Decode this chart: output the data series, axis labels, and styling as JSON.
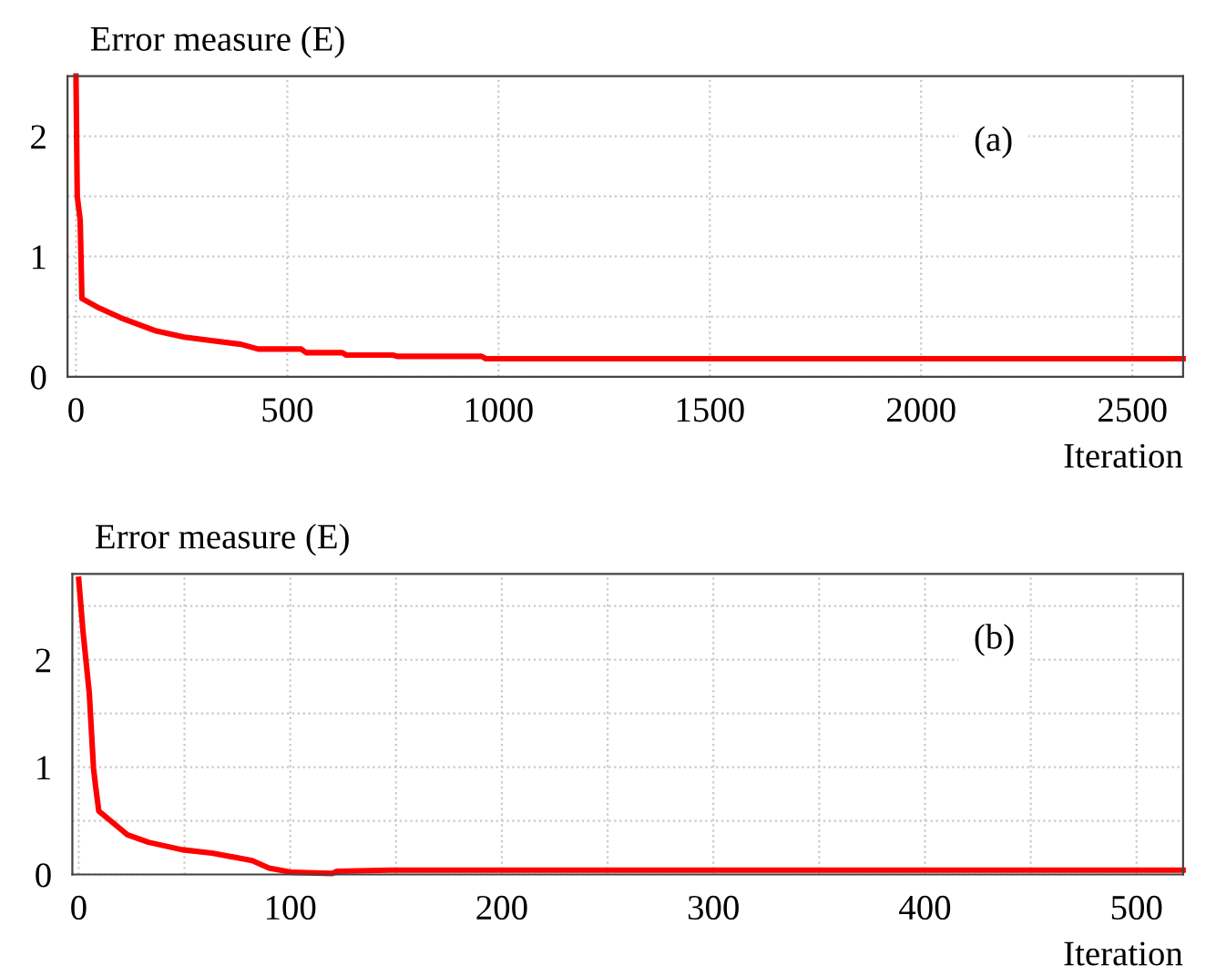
{
  "chart_data": [
    {
      "type": "line",
      "ylabel": "Error measure (E)",
      "xlabel": "Iteration",
      "annotations": [
        "(a)"
      ],
      "xlim": [
        -20,
        2620
      ],
      "xticks": [
        0,
        500,
        1000,
        1500,
        2000,
        2500
      ],
      "ylim": [
        0,
        2.5
      ],
      "yticks": [
        0,
        {
          "value": 0.5,
          "label": null
        },
        1,
        {
          "value": 1.5,
          "label": null
        },
        2
      ],
      "grid": true,
      "legend": false,
      "marker": "none",
      "line_style": "solid",
      "series": [
        {
          "color": "#ff0000",
          "x": [
            0,
            3,
            10,
            14,
            50,
            106,
            190,
            256,
            390,
            431,
            533,
            545,
            630,
            640,
            750,
            760,
            960,
            970,
            2620
          ],
          "values": [
            2.5,
            1.5,
            1.3,
            0.65,
            0.58,
            0.49,
            0.38,
            0.33,
            0.27,
            0.23,
            0.23,
            0.2,
            0.2,
            0.18,
            0.18,
            0.17,
            0.17,
            0.15,
            0.15
          ]
        }
      ]
    },
    {
      "type": "line",
      "ylabel": "Error measure (E)",
      "xlabel": "Iteration",
      "annotations": [
        "(b)"
      ],
      "xlim": [
        -3,
        522
      ],
      "xticks": [
        0,
        {
          "value": 50,
          "label": null
        },
        100,
        {
          "value": 150,
          "label": null
        },
        200,
        {
          "value": 250,
          "label": null
        },
        300,
        {
          "value": 350,
          "label": null
        },
        400,
        {
          "value": 450,
          "label": null
        },
        500
      ],
      "ylim": [
        0,
        2.8
      ],
      "yticks": [
        0,
        {
          "value": 0.5,
          "label": null
        },
        1,
        {
          "value": 1.5,
          "label": null
        },
        2,
        {
          "value": 2.5,
          "label": null
        }
      ],
      "grid": true,
      "legend": false,
      "marker": "none",
      "line_style": "solid",
      "series": [
        {
          "color": "#ff0000",
          "x": [
            0,
            2,
            5,
            7,
            8,
            9.5,
            20,
            23,
            33,
            49,
            63,
            82,
            90,
            101,
            120,
            122,
            147,
            522
          ],
          "values": [
            2.75,
            2.27,
            1.69,
            0.99,
            0.82,
            0.59,
            0.42,
            0.37,
            0.3,
            0.23,
            0.2,
            0.13,
            0.06,
            0.02,
            0.01,
            0.03,
            0.04,
            0.04
          ]
        }
      ]
    }
  ]
}
